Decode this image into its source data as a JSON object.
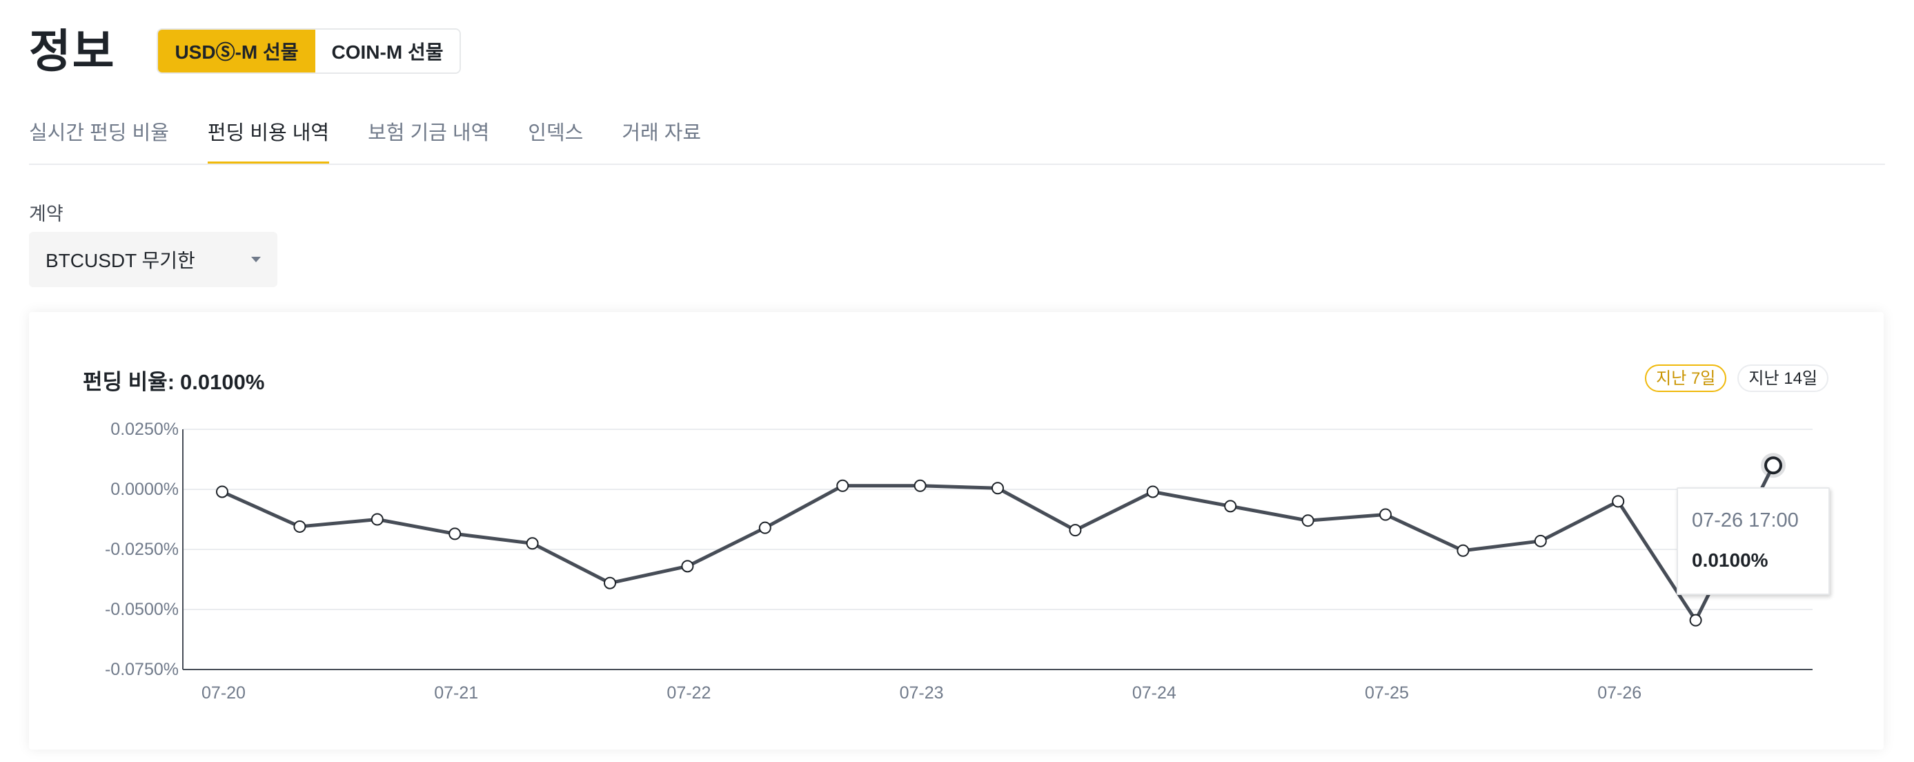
{
  "header": {
    "title": "정보",
    "segments": [
      {
        "label": "USDⓈ-M 선물",
        "active": true
      },
      {
        "label": "COIN-M 선물",
        "active": false
      }
    ]
  },
  "tabs": [
    {
      "label": "실시간 펀딩 비율",
      "active": false
    },
    {
      "label": "펀딩 비용 내역",
      "active": true
    },
    {
      "label": "보험 기금 내역",
      "active": false
    },
    {
      "label": "인덱스",
      "active": false
    },
    {
      "label": "거래 자료",
      "active": false
    }
  ],
  "contract": {
    "label": "계약",
    "value": "BTCUSDT 무기한"
  },
  "card": {
    "title_label": "펀딩 비율:",
    "title_value": "0.0100%",
    "range_buttons": [
      {
        "label": "지난 7일",
        "active": true
      },
      {
        "label": "지난 14일",
        "active": false
      }
    ]
  },
  "tooltip": {
    "time": "07-26 17:00",
    "value": "0.0100%"
  },
  "colors": {
    "accent": "#f0b90b",
    "line": "#474d57",
    "grid": "#eaecef"
  },
  "chart_data": {
    "type": "line",
    "ylim": [
      -0.075,
      0.025
    ],
    "y_ticks": [
      0.025,
      0,
      -0.025,
      -0.05,
      -0.075
    ],
    "y_tick_labels": [
      "0.0250%",
      "0.0000%",
      "-0.0250%",
      "-0.0500%",
      "-0.0750%"
    ],
    "x_tick_labels": [
      "07-20",
      "07-21",
      "07-22",
      "07-23",
      "07-24",
      "07-25",
      "07-26"
    ],
    "x_tick_index": [
      0,
      3,
      6,
      9,
      12,
      15,
      18
    ],
    "grid": true,
    "highlight_index": 20,
    "series": [
      {
        "values": [
          -0.001,
          -0.0155,
          -0.0125,
          -0.0185,
          -0.0225,
          -0.039,
          -0.032,
          -0.016,
          0.0015,
          0.0015,
          0.0005,
          -0.017,
          -0.001,
          -0.007,
          -0.013,
          -0.0105,
          -0.0255,
          -0.0215,
          -0.005,
          -0.0545,
          0.01
        ]
      }
    ]
  }
}
